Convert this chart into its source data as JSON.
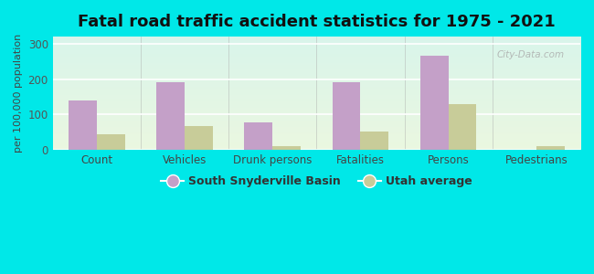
{
  "title": "Fatal road traffic accident statistics for 1975 - 2021",
  "ylabel": "per 100,000 population",
  "categories": [
    "Count",
    "Vehicles",
    "Drunk persons",
    "Fatalities",
    "Persons",
    "Pedestrians"
  ],
  "south_snyderville": [
    140,
    192,
    78,
    192,
    265,
    0
  ],
  "utah_average": [
    45,
    68,
    12,
    53,
    130,
    10
  ],
  "bar_color_snyder": "#c4a0c8",
  "bar_color_utah": "#c8cc99",
  "ylim": [
    0,
    320
  ],
  "yticks": [
    0,
    100,
    200,
    300
  ],
  "background_outer": "#00e8e8",
  "title_fontsize": 13,
  "legend_label_snyder": "South Snyderville Basin",
  "legend_label_utah": "Utah average",
  "bar_width": 0.32,
  "watermark": "City-Data.com"
}
